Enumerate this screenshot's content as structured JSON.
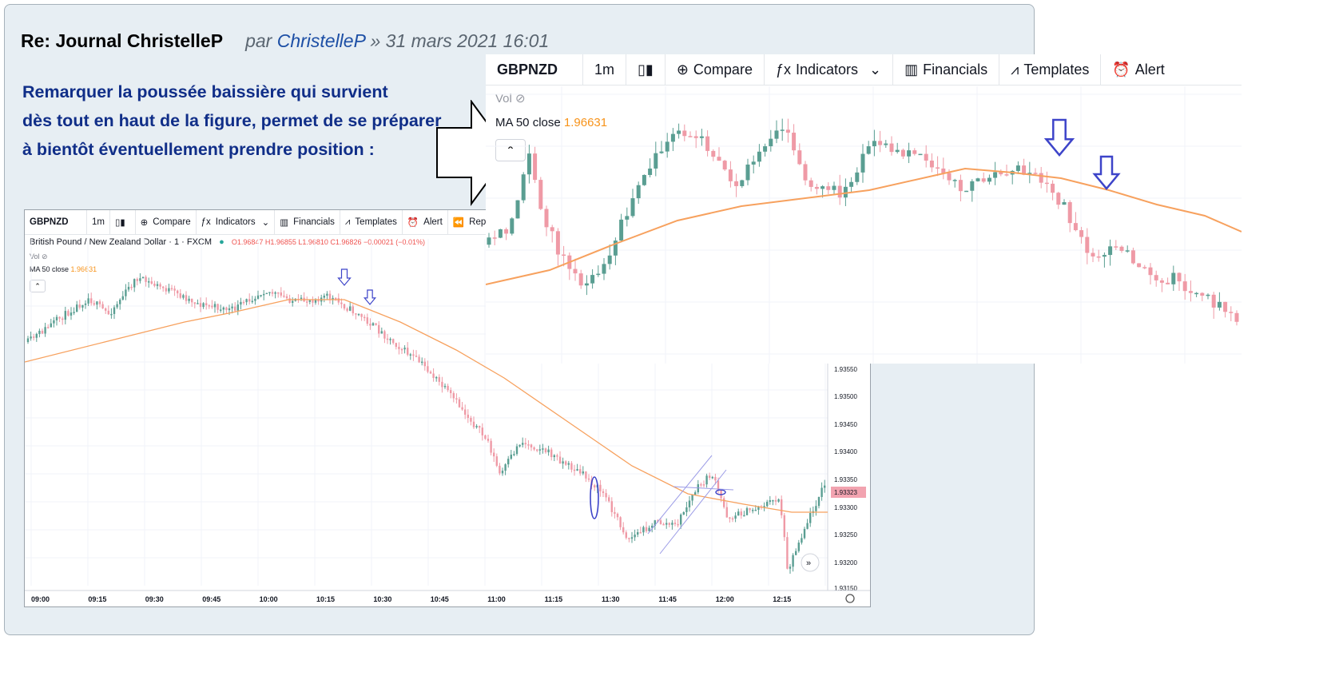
{
  "post": {
    "title": "Re: Journal ChristelleP",
    "by_prefix": "par ",
    "author": "ChristelleP",
    "date": " » 31 mars 2021 16:01",
    "body_lines": [
      "Remarquer la poussée baissière qui survient",
      "dès tout en haut de la figure, permet de se préparer",
      "à bientôt éventuellement prendre position :"
    ]
  },
  "colors": {
    "bull": "#5a9e92",
    "bear": "#ef9aa6",
    "ma": "#f7a15e",
    "arrow": "#3d44c9",
    "grid": "#f0f3fa",
    "price_badge": "#f2a3b0"
  },
  "chart_small": {
    "symbol": "GBPNZD",
    "interval": "1m",
    "toolbar": [
      "Compare",
      "Indicators",
      "Financials",
      "Templates",
      "Alert",
      "Replay"
    ],
    "toolbar_icons": [
      "candle-icon",
      "plus-circle-icon",
      "fx-icon",
      "financials-icon",
      "templates-icon",
      "alarm-icon",
      "replay-icon"
    ],
    "instrument": "British Pound / New Zealand Dollar · 1 · FXCM",
    "ohlc": "O1.96847 H1.96855 L1.96810 C1.96826 −0.00021 (−0.01%)",
    "vol_label": "Vol",
    "ma_label": "MA 50 close",
    "ma_value": "1.96631",
    "price_ticks": [
      "1.93550",
      "1.93500",
      "1.93450",
      "1.93400",
      "1.93350",
      "1.93323",
      "1.93300",
      "1.93250",
      "1.93200",
      "1.93150"
    ],
    "current_price": "1.93323",
    "time_ticks": [
      "09:00",
      "09:15",
      "09:30",
      "09:45",
      "10:00",
      "10:15",
      "10:30",
      "10:45",
      "11:00",
      "11:15",
      "11:30",
      "11:45",
      "12:00",
      "12:15"
    ]
  },
  "chart_large": {
    "symbol": "GBPNZD",
    "interval": "1m",
    "toolbar": [
      "Compare",
      "Indicators",
      "Financials",
      "Templates",
      "Alert"
    ],
    "toolbar_icons": [
      "candle-icon",
      "plus-circle-icon",
      "fx-icon",
      "financials-icon",
      "templates-icon",
      "alarm-icon"
    ],
    "vol_label": "Vol",
    "ma_label": "MA 50 close",
    "ma_value": "1.96631"
  }
}
